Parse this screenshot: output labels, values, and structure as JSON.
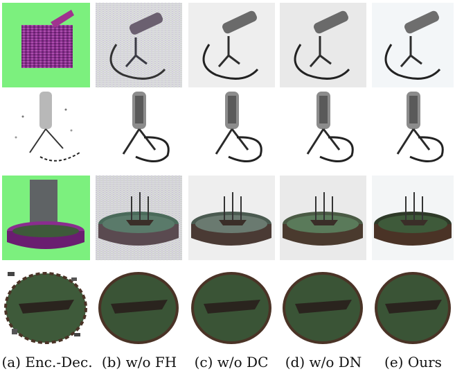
{
  "figure": {
    "captions": [
      "(a) Enc.-Dec.",
      "(b) w/o FH",
      "(c) w/o DC",
      "(d) w/o DN",
      "(e) Ours"
    ],
    "rows": [
      {
        "subject": "microphone-side",
        "backgrounds": [
          "#7CF07E",
          "#DCDCE0",
          "#EEEEEE",
          "#E9E9E9",
          "#F3F6F8"
        ]
      },
      {
        "subject": "microphone-front",
        "backgrounds": [
          "#FFFFFF",
          "#FFFFFF",
          "#FFFFFF",
          "#FFFFFF",
          "#FFFFFF"
        ]
      },
      {
        "subject": "ship-fountain",
        "backgrounds": [
          "#7CF07E",
          "#D9D9DD",
          "#EEEEEE",
          "#EAEAEA",
          "#F3F5F6"
        ]
      },
      {
        "subject": "ship-fountain-top",
        "backgrounds": [
          "#FFFFFF",
          "#FFFFFF",
          "#FFFFFF",
          "#FFFFFF",
          "#FFFFFF"
        ]
      }
    ],
    "colors": {
      "artifact_purple": "#8A2D8E",
      "metal": "#555555",
      "water_green": "#3E5A3A",
      "rim_brown": "#4A3326"
    }
  }
}
